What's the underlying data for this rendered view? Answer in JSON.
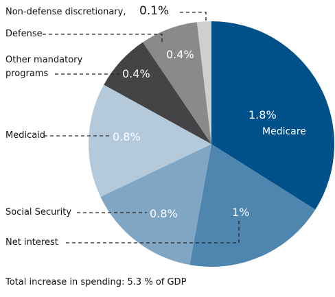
{
  "chart_data": {
    "type": "pie",
    "categories": [
      "Medicare",
      "Net interest",
      "Social Security",
      "Medicaid",
      "Other mandatory programs",
      "Defense",
      "Non-defense discretionary,"
    ],
    "values": [
      1.8,
      1,
      0.8,
      0.8,
      0.4,
      0.4,
      0.1
    ],
    "value_labels": [
      "1.8%",
      "1%",
      "0.8%",
      "0.8%",
      "0.4%",
      "0.4%",
      "0.1%"
    ],
    "colors": [
      "#00508a",
      "#4f86b0",
      "#80a6c4",
      "#b4cadb",
      "#444446",
      "#8a8a8c",
      "#cfcfcf"
    ],
    "note": "Total increase in spending: 5.3 % of GDP"
  }
}
